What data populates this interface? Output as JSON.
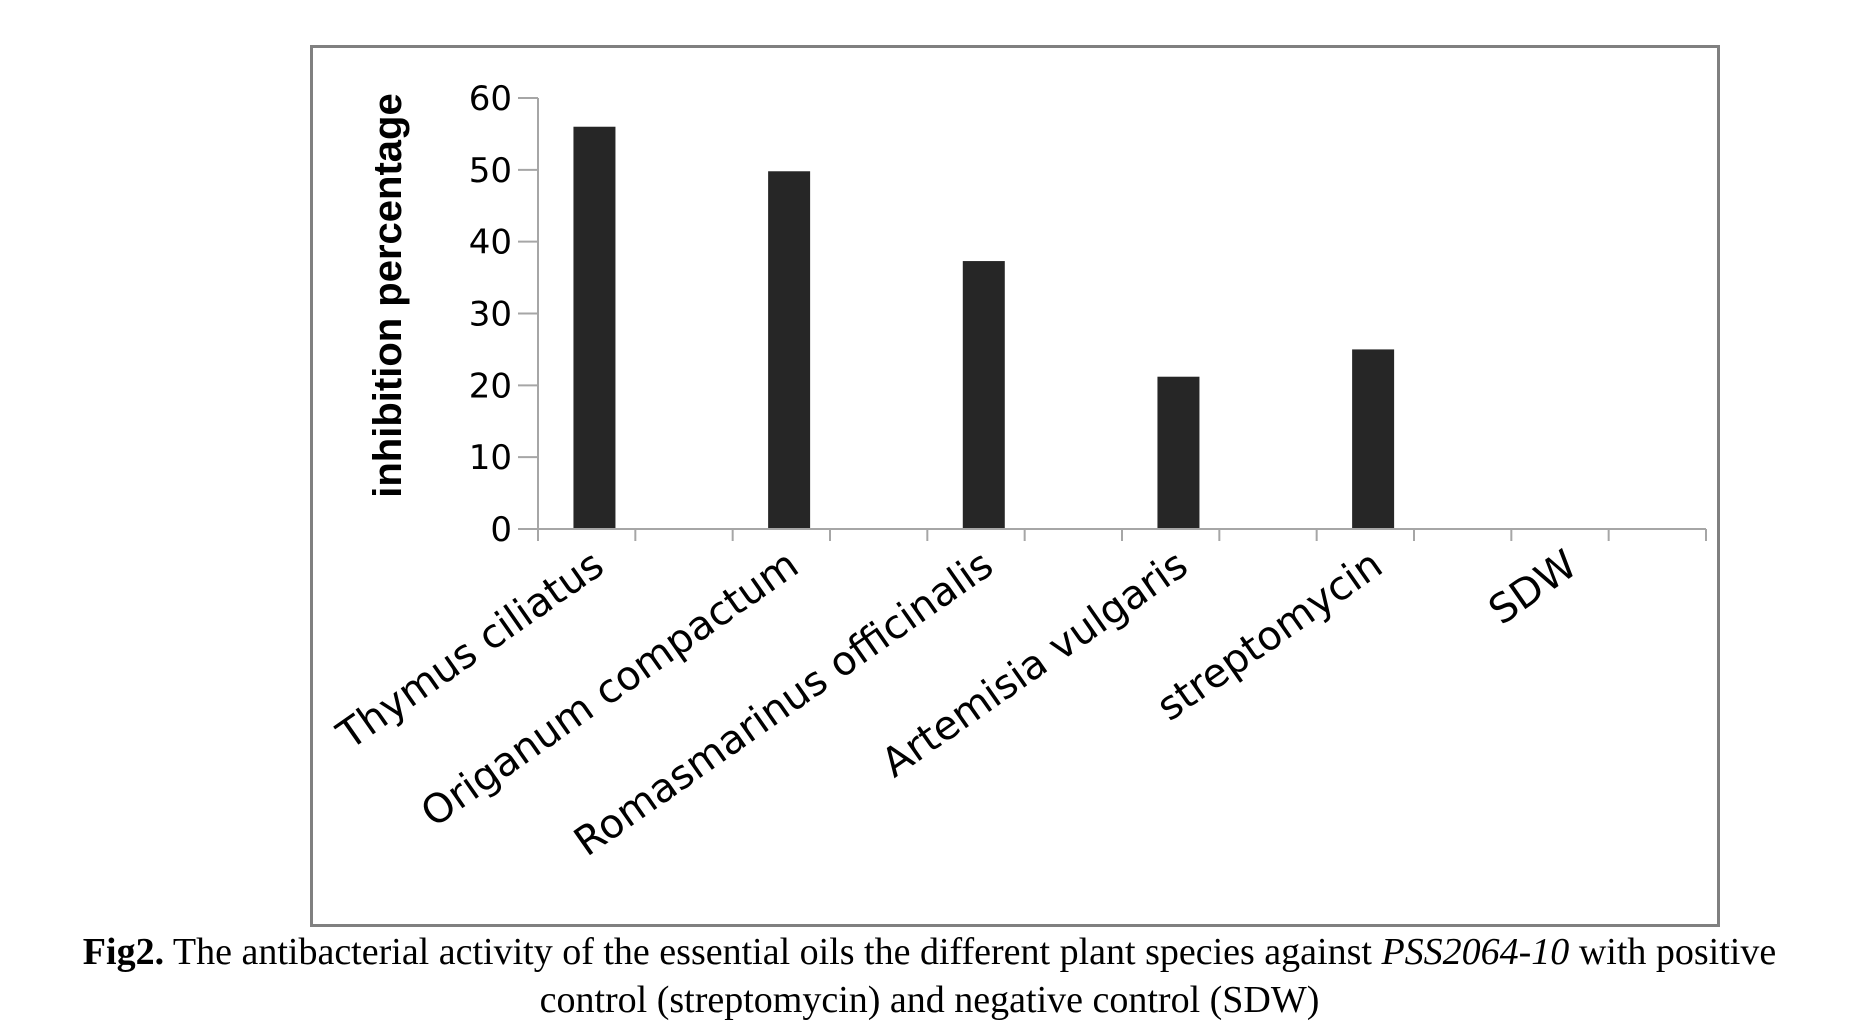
{
  "chart_data": {
    "type": "bar",
    "categories": [
      "Thymus ciliatus",
      "Origanum compactum",
      "Romasmarinus officinalis",
      "Artemisia vulgaris",
      "streptomycin",
      "SDW"
    ],
    "values": [
      56,
      49.8,
      37.3,
      21.2,
      25,
      0
    ],
    "title": "",
    "xlabel": "",
    "ylabel": "inhibition percentage",
    "ylim": [
      0,
      60
    ],
    "yticks": [
      "0",
      "10",
      "20",
      "30",
      "40",
      "50",
      "60"
    ],
    "grid": false,
    "legend": "none",
    "bar_color": "#262626",
    "axis_color": "#a6a6a6",
    "frame_color": "#808080"
  },
  "caption": {
    "label": "Fig2.",
    "text_before": " The antibacterial activity of the essential oils the different plant species against ",
    "italic": "PSS2064-10",
    "text_after_line1": " with positive",
    "line2": "control (streptomycin) and negative control (SDW)"
  }
}
